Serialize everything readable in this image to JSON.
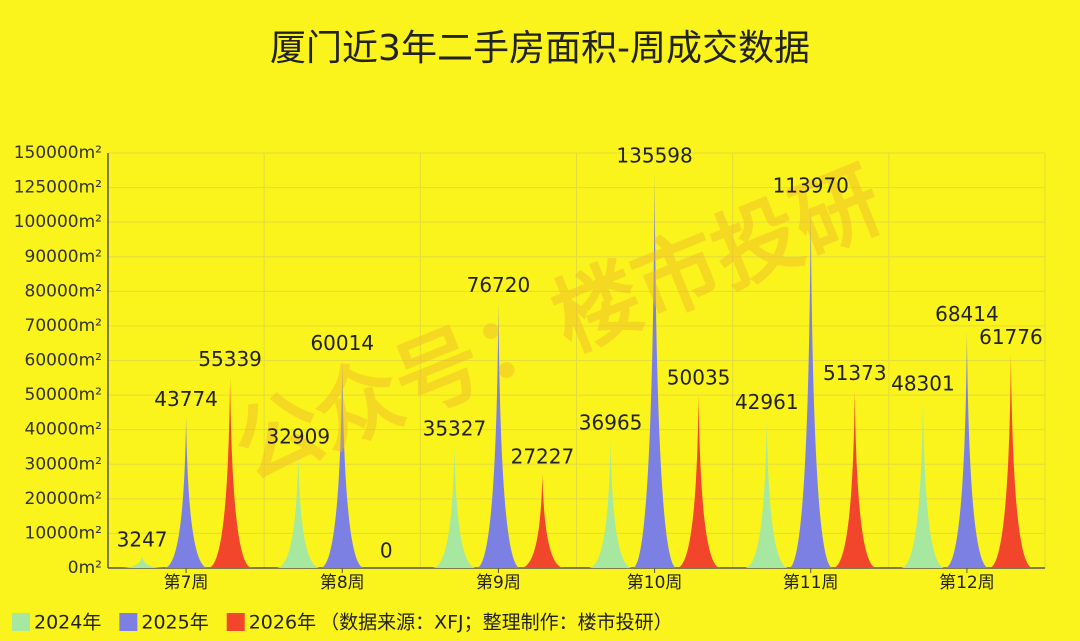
{
  "chart_data": {
    "type": "spike",
    "title": "厦门近3年二手房面积-周成交数据",
    "categories": [
      "第7周",
      "第8周",
      "第9周",
      "第10周",
      "第11周",
      "第12周"
    ],
    "series": [
      {
        "name": "2024年",
        "color": "#a6e8a0",
        "values": [
          3247,
          32909,
          35327,
          36965,
          42961,
          48301
        ]
      },
      {
        "name": "2025年",
        "color": "#7d80e3",
        "values": [
          43774,
          60014,
          76720,
          135598,
          113970,
          68414
        ]
      },
      {
        "name": "2026年",
        "color": "#f2462c",
        "values": [
          55339,
          0,
          27227,
          50035,
          51373,
          61776
        ]
      }
    ],
    "ylim": [
      0,
      150000
    ],
    "yticks": [
      {
        "value": 0,
        "label": "0m²"
      },
      {
        "value": 10000,
        "label": "10000m²"
      },
      {
        "value": 20000,
        "label": "20000m²"
      },
      {
        "value": 30000,
        "label": "30000m²"
      },
      {
        "value": 40000,
        "label": "40000m²"
      },
      {
        "value": 50000,
        "label": "50000m²"
      },
      {
        "value": 60000,
        "label": "60000m²"
      },
      {
        "value": 70000,
        "label": "70000m²"
      },
      {
        "value": 80000,
        "label": "80000m²"
      },
      {
        "value": 90000,
        "label": "90000m²"
      },
      {
        "value": 100000,
        "label": "100000m²"
      },
      {
        "value": 125000,
        "label": "125000m²"
      },
      {
        "value": 150000,
        "label": "150000m²"
      }
    ],
    "grid": true,
    "legend_note": "（数据来源：XFJ；整理制作：楼市投研）",
    "watermark": "公众号：楼市投研"
  }
}
